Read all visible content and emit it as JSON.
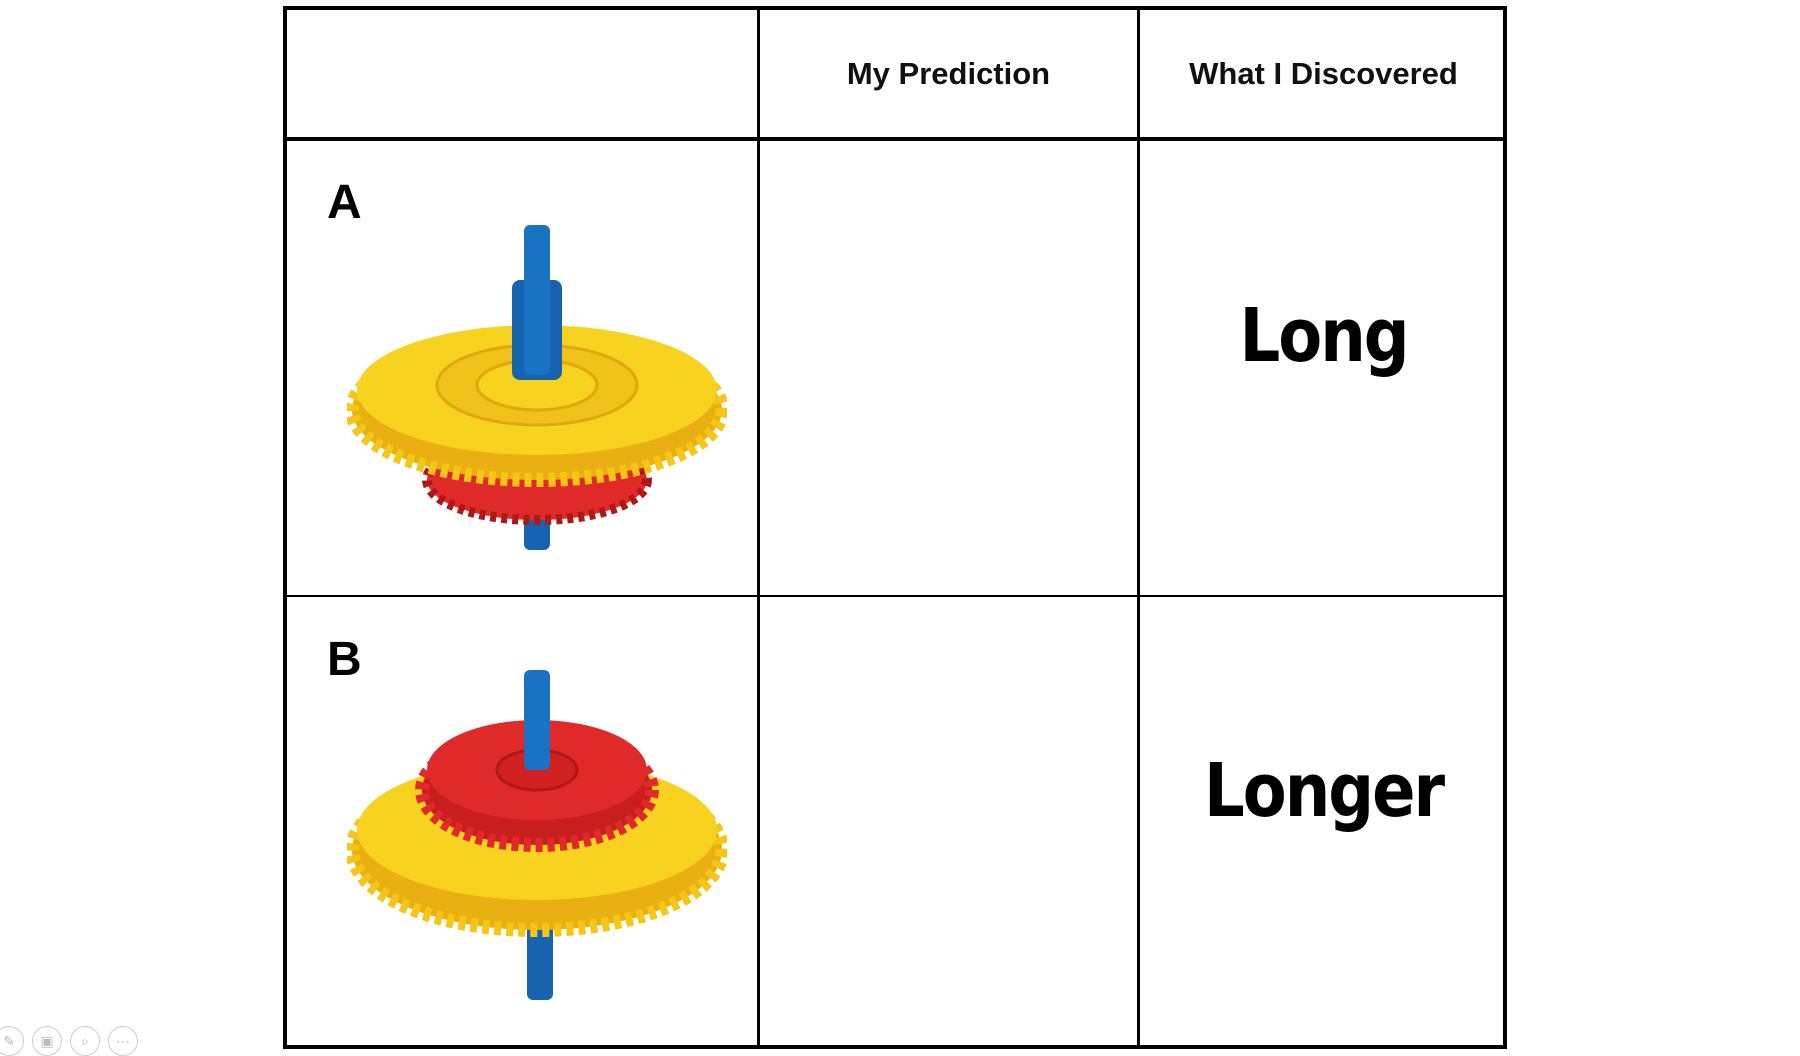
{
  "table": {
    "headers": [
      "",
      "My Prediction",
      "What I Discovered"
    ],
    "rows": [
      {
        "label": "A",
        "prediction": "",
        "discovered": "Long"
      },
      {
        "label": "B",
        "prediction": "",
        "discovered": "Longer"
      }
    ]
  },
  "colors": {
    "yellow": "#f7d21e",
    "red": "#e02a2a",
    "blue": "#1664b0"
  },
  "toolbar": {
    "icons": [
      "pen-icon",
      "slides-icon",
      "zoom-icon",
      "more-icon"
    ]
  }
}
